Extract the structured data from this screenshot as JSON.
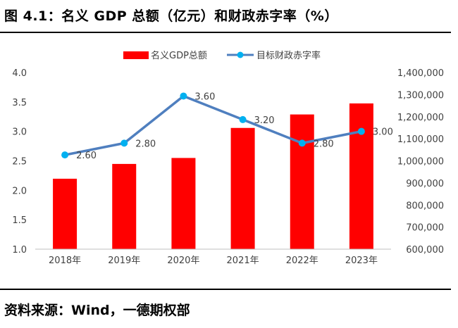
{
  "figure": {
    "title": "图 4.1：名义 GDP 总额（亿元）和财政赤字率（%）",
    "source": "资料来源：Wind，一德期权部"
  },
  "chart_data": {
    "type": "bar+line",
    "categories": [
      "2018年",
      "2019年",
      "2020年",
      "2021年",
      "2022年",
      "2023年"
    ],
    "series": [
      {
        "name": "名义GDP总额",
        "type": "bar",
        "axis": "right",
        "color": "#ff0000",
        "values": [
          919000,
          986000,
          1013000,
          1149000,
          1210000,
          1260000
        ]
      },
      {
        "name": "目标财政赤字率",
        "type": "line",
        "axis": "left",
        "color": "#4f7fbf",
        "marker_color": "#00b0f0",
        "values": [
          2.6,
          2.8,
          3.6,
          3.2,
          2.8,
          3.0
        ],
        "labels": [
          "2.60",
          "2.80",
          "3.60",
          "3.20",
          "2.80",
          "3.00"
        ]
      }
    ],
    "y_left": {
      "min": 1.0,
      "max": 4.0,
      "ticks": [
        "4.0",
        "3.5",
        "3.0",
        "2.5",
        "2.0",
        "1.5",
        "1.0"
      ],
      "tick_values": [
        4.0,
        3.5,
        3.0,
        2.5,
        2.0,
        1.5,
        1.0
      ]
    },
    "y_right": {
      "min": 600000,
      "max": 1400000,
      "ticks": [
        "1,400,000",
        "1,300,000",
        "1,200,000",
        "1,100,000",
        "1,000,000",
        "900,000",
        "800,000",
        "700,000",
        "600,000"
      ],
      "tick_values": [
        1400000,
        1300000,
        1200000,
        1100000,
        1000000,
        900000,
        800000,
        700000,
        600000
      ]
    },
    "legend": {
      "position": "top"
    },
    "grid": false
  }
}
